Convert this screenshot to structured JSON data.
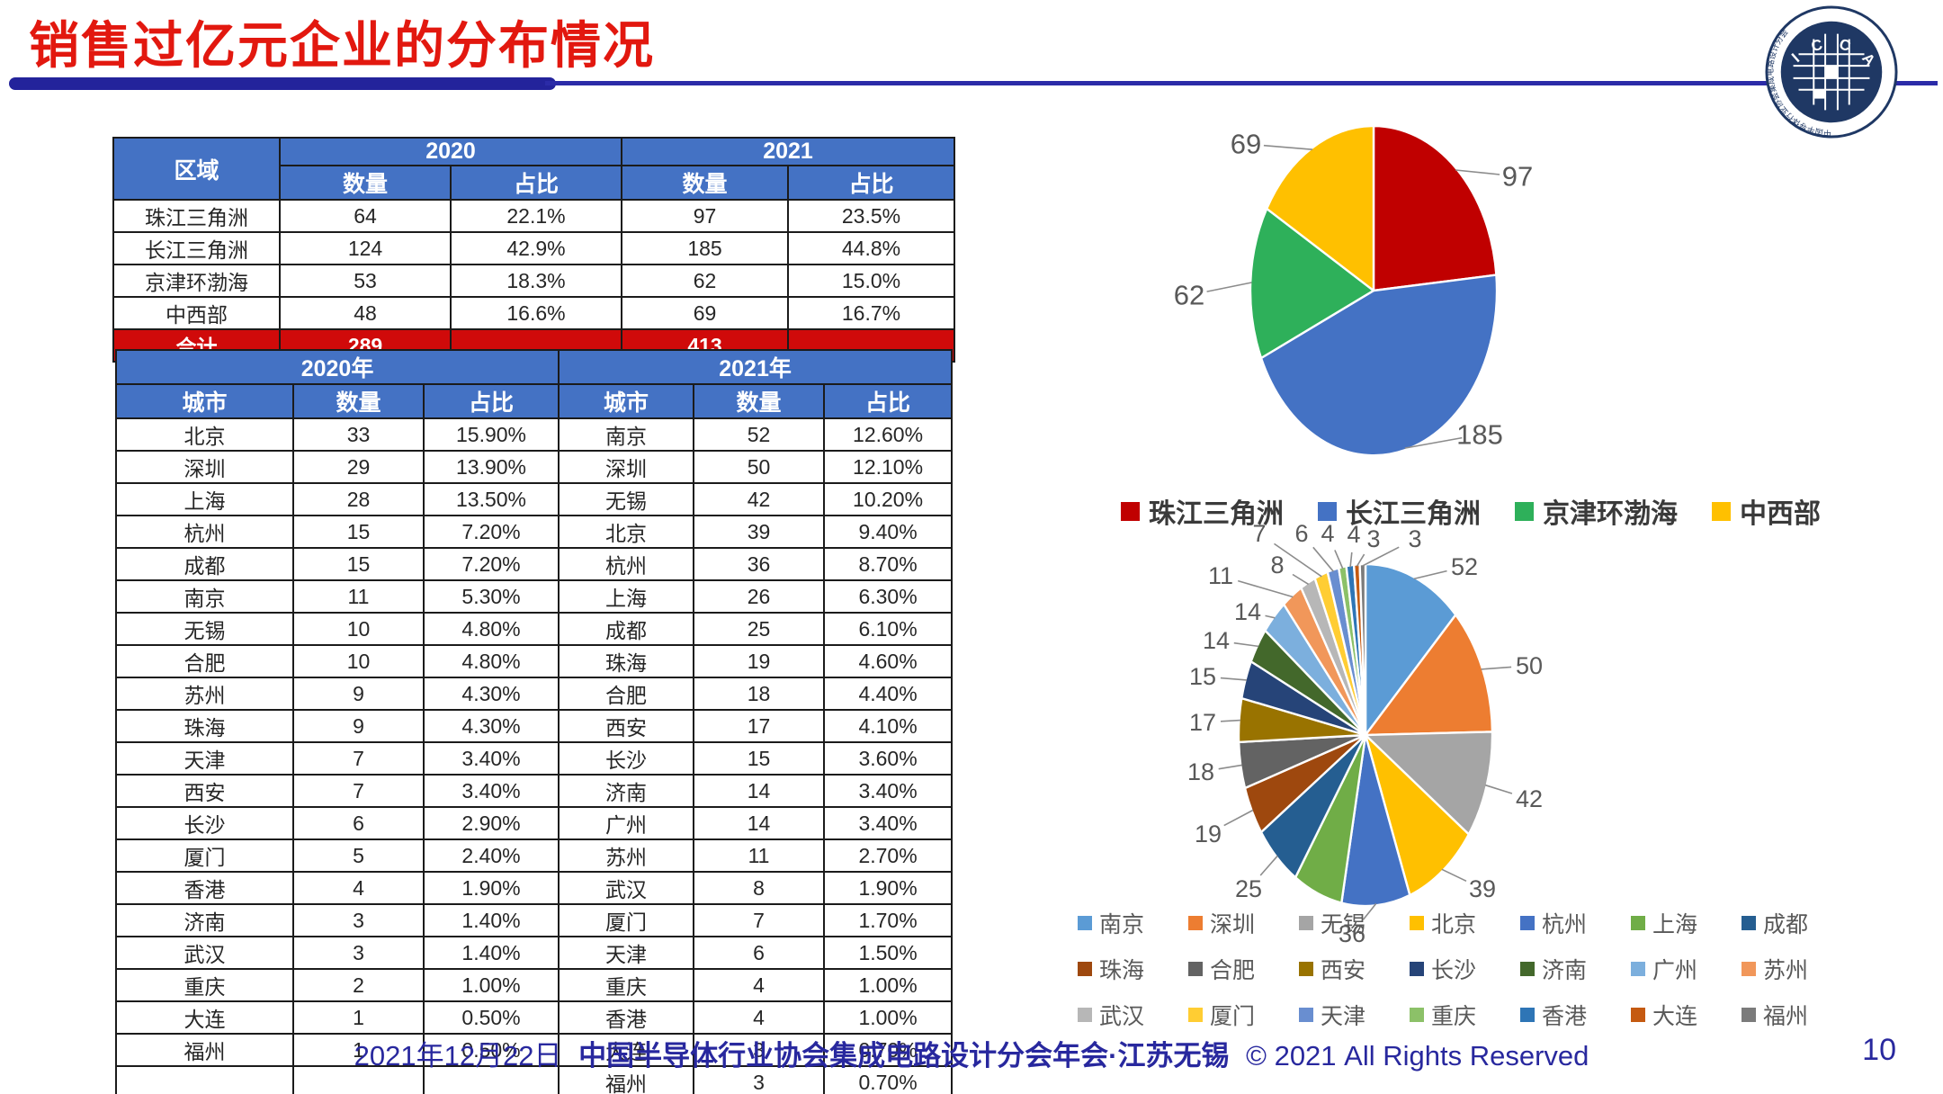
{
  "slide": {
    "title": "销售过亿元企业的分布情况",
    "footer_date": "2021年12月22日",
    "footer_middle": "中国半导体行业协会集成电路设计分会年会·江苏无锡",
    "footer_rights": "© 2021 All Rights Reserved",
    "page_number": "10",
    "logo_letters": "I C C A D",
    "logo_ring_text": "中国半导体行业协会集成电路设计分会"
  },
  "colors": {
    "title_red": "#E2180F",
    "header_blue": "#4472C4",
    "total_red": "#D00A0A",
    "bar_navy": "#23239B",
    "footer_navy": "#28289E"
  },
  "region_table": {
    "col_region": "区域",
    "col_2020": "2020",
    "col_2021": "2021",
    "col_count": "数量",
    "col_share": "占比",
    "rows": [
      [
        "珠江三角洲",
        "64",
        "22.1%",
        "97",
        "23.5%"
      ],
      [
        "长江三角洲",
        "124",
        "42.9%",
        "185",
        "44.8%"
      ],
      [
        "京津环渤海",
        "53",
        "18.3%",
        "62",
        "15.0%"
      ],
      [
        "中西部",
        "48",
        "16.6%",
        "69",
        "16.7%"
      ]
    ],
    "total": [
      "合计",
      "289",
      "",
      "413",
      ""
    ]
  },
  "city_table": {
    "col_2020": "2020年",
    "col_2021": "2021年",
    "col_city": "城市",
    "col_count": "数量",
    "col_share": "占比",
    "rows_2020": [
      [
        "北京",
        "33",
        "15.90%"
      ],
      [
        "深圳",
        "29",
        "13.90%"
      ],
      [
        "上海",
        "28",
        "13.50%"
      ],
      [
        "杭州",
        "15",
        "7.20%"
      ],
      [
        "成都",
        "15",
        "7.20%"
      ],
      [
        "南京",
        "11",
        "5.30%"
      ],
      [
        "无锡",
        "10",
        "4.80%"
      ],
      [
        "合肥",
        "10",
        "4.80%"
      ],
      [
        "苏州",
        "9",
        "4.30%"
      ],
      [
        "珠海",
        "9",
        "4.30%"
      ],
      [
        "天津",
        "7",
        "3.40%"
      ],
      [
        "西安",
        "7",
        "3.40%"
      ],
      [
        "长沙",
        "6",
        "2.90%"
      ],
      [
        "厦门",
        "5",
        "2.40%"
      ],
      [
        "香港",
        "4",
        "1.90%"
      ],
      [
        "济南",
        "3",
        "1.40%"
      ],
      [
        "武汉",
        "3",
        "1.40%"
      ],
      [
        "重庆",
        "2",
        "1.00%"
      ],
      [
        "大连",
        "1",
        "0.50%"
      ],
      [
        "福州",
        "1",
        "0.50%"
      ],
      [
        "",
        "",
        ""
      ]
    ],
    "rows_2021": [
      [
        "南京",
        "52",
        "12.60%"
      ],
      [
        "深圳",
        "50",
        "12.10%"
      ],
      [
        "无锡",
        "42",
        "10.20%"
      ],
      [
        "北京",
        "39",
        "9.40%"
      ],
      [
        "杭州",
        "36",
        "8.70%"
      ],
      [
        "上海",
        "26",
        "6.30%"
      ],
      [
        "成都",
        "25",
        "6.10%"
      ],
      [
        "珠海",
        "19",
        "4.60%"
      ],
      [
        "合肥",
        "18",
        "4.40%"
      ],
      [
        "西安",
        "17",
        "4.10%"
      ],
      [
        "长沙",
        "15",
        "3.60%"
      ],
      [
        "济南",
        "14",
        "3.40%"
      ],
      [
        "广州",
        "14",
        "3.40%"
      ],
      [
        "苏州",
        "11",
        "2.70%"
      ],
      [
        "武汉",
        "8",
        "1.90%"
      ],
      [
        "厦门",
        "7",
        "1.70%"
      ],
      [
        "天津",
        "6",
        "1.50%"
      ],
      [
        "重庆",
        "4",
        "1.00%"
      ],
      [
        "香港",
        "4",
        "1.00%"
      ],
      [
        "大连",
        "3",
        "0.70%"
      ],
      [
        "福州",
        "3",
        "0.70%"
      ]
    ]
  },
  "chart_data": [
    {
      "type": "pie",
      "name": "regions-2021-pie",
      "categories": [
        "珠江三角洲",
        "长江三角洲",
        "京津环渤海",
        "中西部"
      ],
      "values": [
        97,
        185,
        62,
        69
      ],
      "data_labels": [
        "97",
        "185",
        "62",
        "69"
      ],
      "colors": [
        "#C00000",
        "#4472C4",
        "#2EB05A",
        "#FFC000"
      ],
      "start_angle": -90,
      "direction": "clockwise",
      "legend_position": "bottom"
    },
    {
      "type": "pie",
      "name": "cities-2021-pie",
      "categories": [
        "南京",
        "深圳",
        "无锡",
        "北京",
        "杭州",
        "上海",
        "成都",
        "珠海",
        "合肥",
        "西安",
        "长沙",
        "济南",
        "广州",
        "苏州",
        "武汉",
        "厦门",
        "天津",
        "重庆",
        "香港",
        "大连",
        "福州"
      ],
      "values": [
        52,
        50,
        42,
        39,
        36,
        26,
        25,
        19,
        18,
        17,
        15,
        14,
        14,
        11,
        8,
        7,
        6,
        4,
        4,
        3,
        3
      ],
      "data_labels": [
        "52",
        "50",
        "42",
        "39",
        "36",
        "",
        "25",
        "19",
        "18",
        "17",
        "15",
        "14",
        "14",
        "11",
        "8",
        "7",
        "6",
        "4",
        "4",
        "3",
        "3"
      ],
      "colors": [
        "#5B9BD5",
        "#ED7D31",
        "#A5A5A5",
        "#FFC000",
        "#4472C4",
        "#70AD47",
        "#255E91",
        "#9E480E",
        "#636363",
        "#997300",
        "#264478",
        "#43682B",
        "#7CAFDD",
        "#F1975A",
        "#B7B7B7",
        "#FFCD33",
        "#698ED0",
        "#8CC168",
        "#2E75B6",
        "#C55A11",
        "#7B7B7B"
      ],
      "start_angle": -90,
      "direction": "clockwise",
      "legend_position": "bottom"
    }
  ]
}
